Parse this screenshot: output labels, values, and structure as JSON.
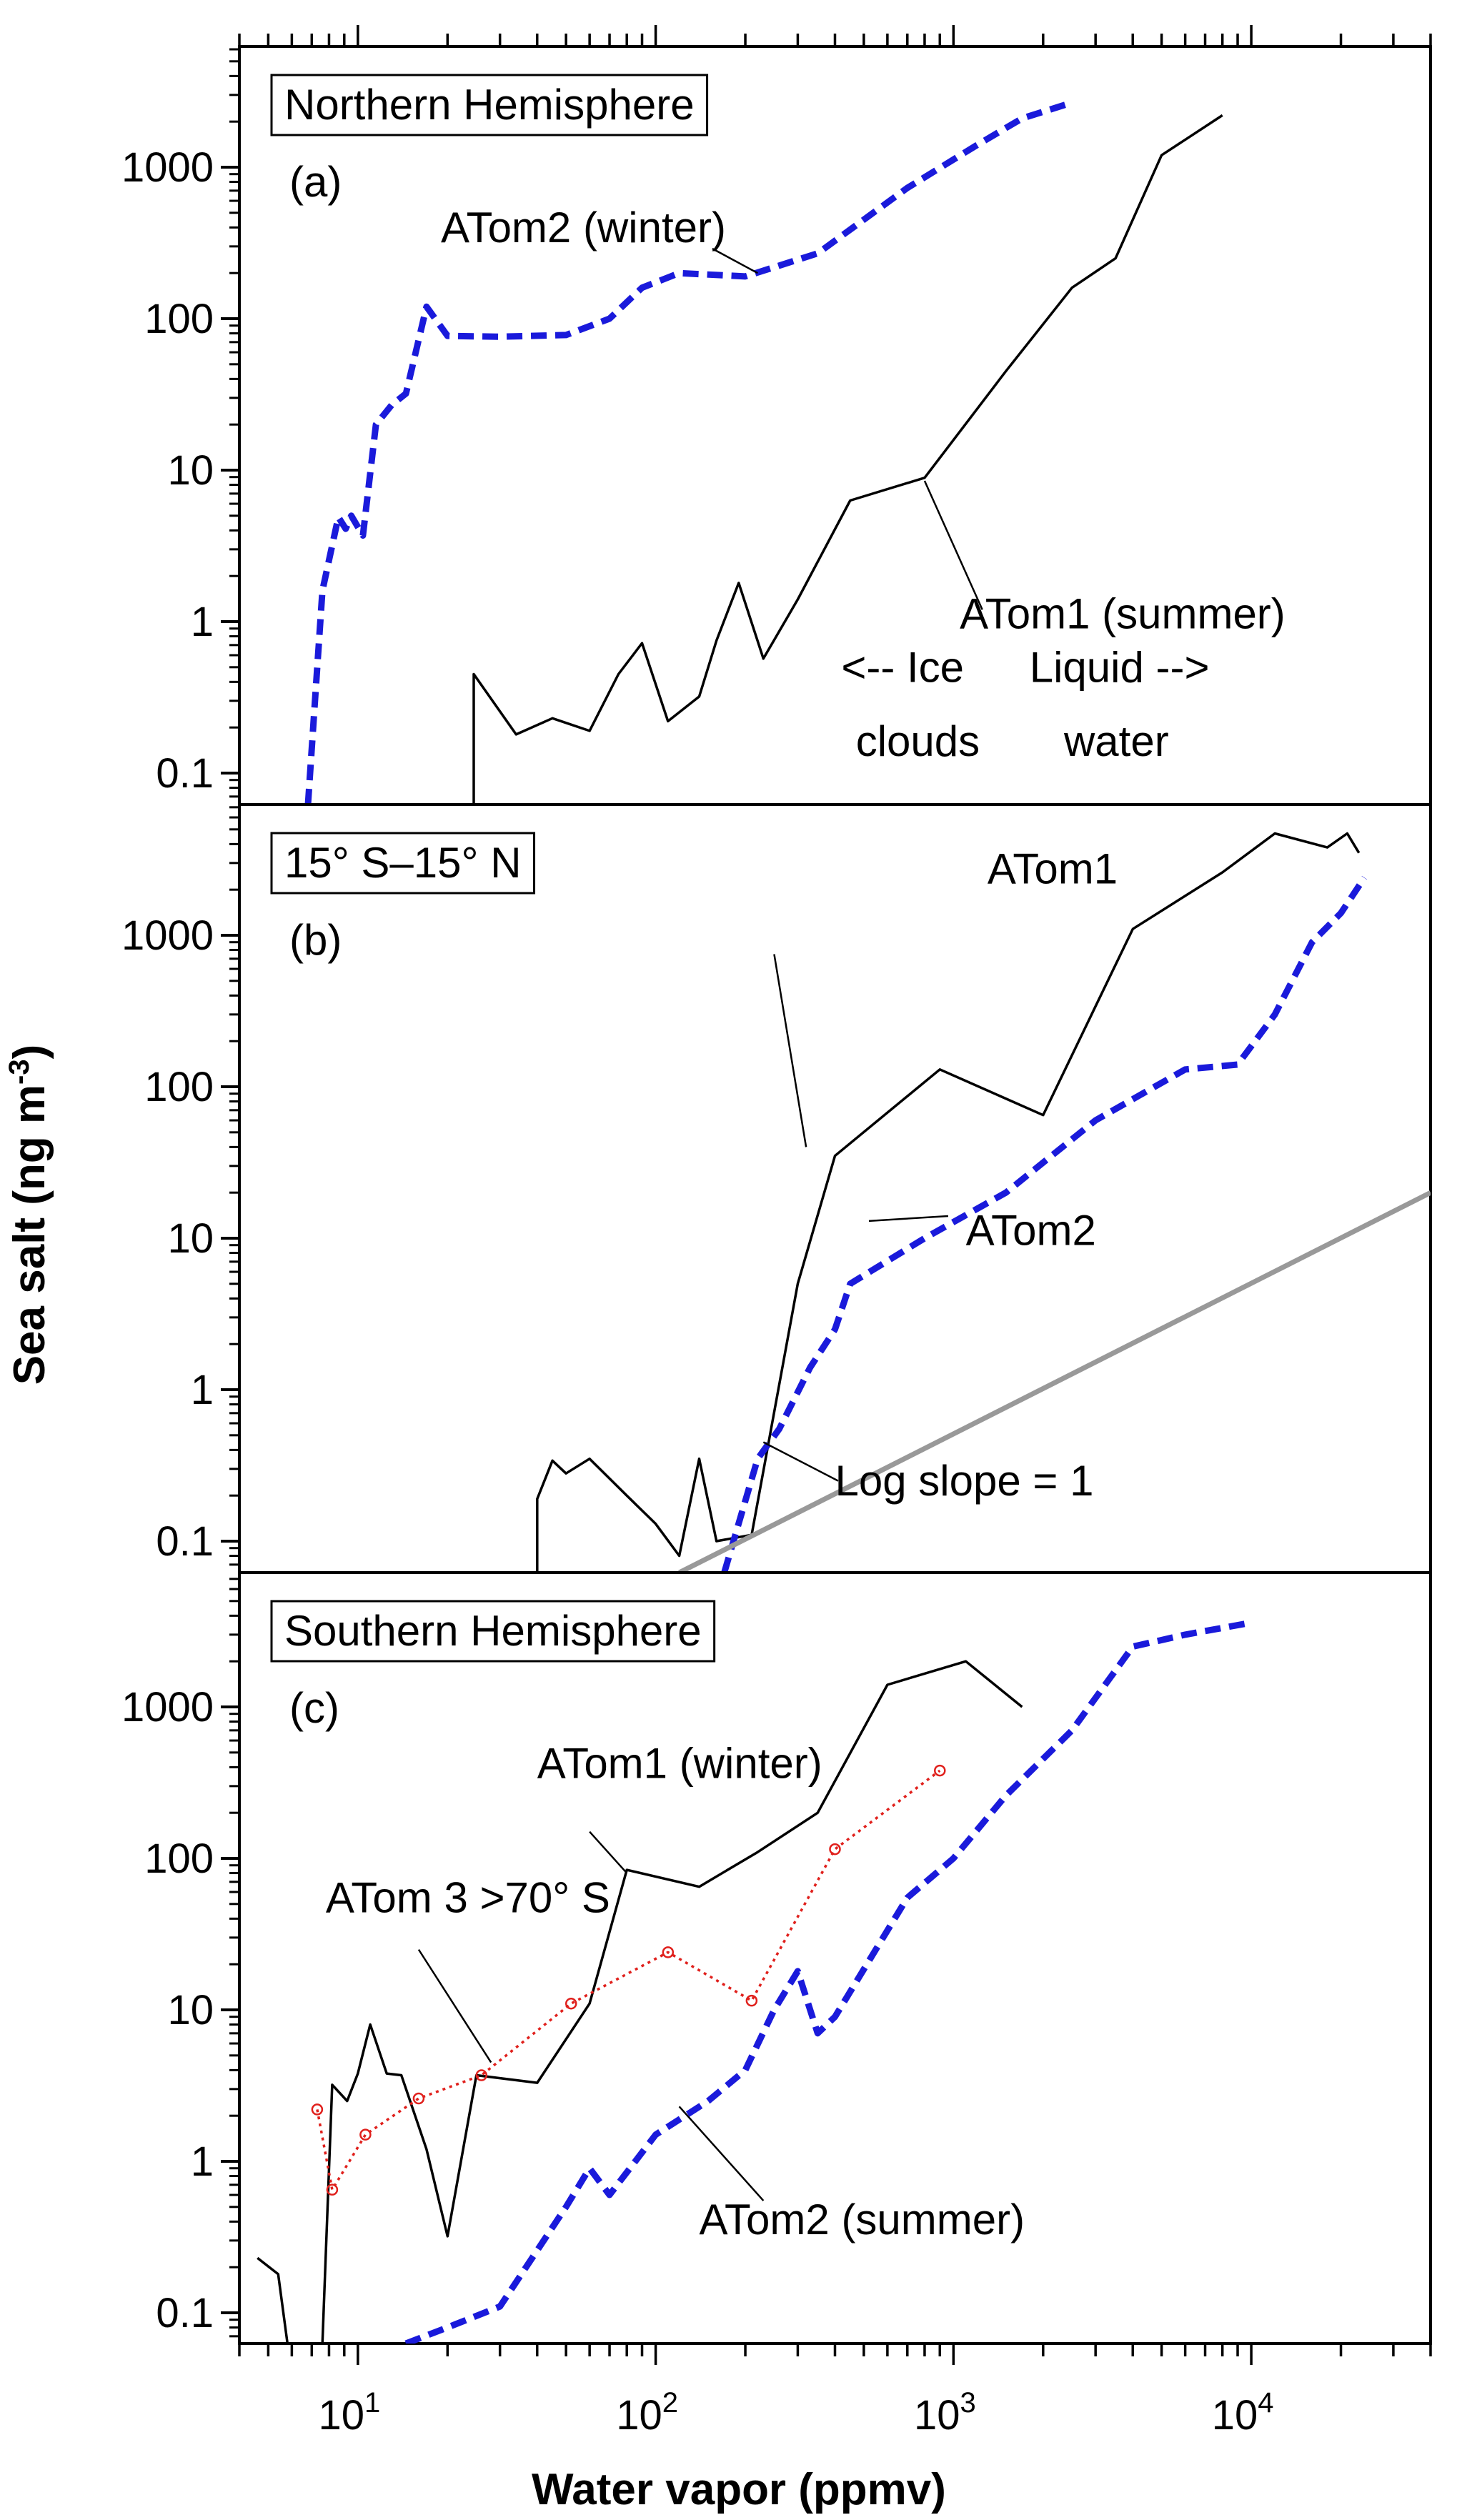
{
  "chart_data": {
    "type": "line",
    "title": "",
    "xlabel": "Water vapor (ppmv)",
    "ylabel": "Sea salt (ng m",
    "ylabel_superscript": "-3",
    "ylabel_suffix": ")",
    "xscale": "log",
    "yscale": "log",
    "xlim": [
      4,
      40000
    ],
    "x_ticks": [
      {
        "value": 10,
        "base": "10",
        "exp": "1"
      },
      {
        "value": 100,
        "base": "10",
        "exp": "2"
      },
      {
        "value": 1000,
        "base": "10",
        "exp": "3"
      },
      {
        "value": 10000,
        "base": "10",
        "exp": "4"
      }
    ],
    "y_ticks": [
      {
        "value": 0.1,
        "label": "0.1"
      },
      {
        "value": 1,
        "label": "1"
      },
      {
        "value": 10,
        "label": "10"
      },
      {
        "value": 100,
        "label": "100"
      },
      {
        "value": 1000,
        "label": "1000"
      }
    ],
    "ylim": [
      0.06,
      6000
    ],
    "grid": false,
    "panels": [
      {
        "id": "a",
        "box_label": "Northern Hemisphere",
        "panel_letter": "(a)",
        "series": [
          {
            "name": "ATom2 (winter)",
            "style": "dashed",
            "color": "#1a1adb",
            "points": [
              [
                6.8,
                0.06
              ],
              [
                7.6,
                1.6
              ],
              [
                8.6,
                4.9
              ],
              [
                9.1,
                4.1
              ],
              [
                9.5,
                5.0
              ],
              [
                10.4,
                3.7
              ],
              [
                11.5,
                20
              ],
              [
                13,
                27
              ],
              [
                14.5,
                32
              ],
              [
                17,
                120
              ],
              [
                20,
                77
              ],
              [
                30,
                76
              ],
              [
                50,
                78
              ],
              [
                70,
                100
              ],
              [
                90,
                160
              ],
              [
                120,
                200
              ],
              [
                200,
                190
              ],
              [
                350,
                270
              ],
              [
                700,
                730
              ],
              [
                1200,
                1400
              ],
              [
                1700,
                2100
              ],
              [
                2400,
                2600
              ]
            ]
          },
          {
            "name": "ATom1 (summer)",
            "style": "solid",
            "color": "#000000",
            "points": [
              [
                24.5,
                0.06
              ],
              [
                24.5,
                0.45
              ],
              [
                34,
                0.18
              ],
              [
                45,
                0.23
              ],
              [
                60,
                0.19
              ],
              [
                75,
                0.45
              ],
              [
                90,
                0.72
              ],
              [
                110,
                0.22
              ],
              [
                140,
                0.32
              ],
              [
                160,
                0.75
              ],
              [
                190,
                1.8
              ],
              [
                230,
                0.57
              ],
              [
                300,
                1.4
              ],
              [
                450,
                6.3
              ],
              [
                800,
                8.9
              ],
              [
                1500,
                45
              ],
              [
                2500,
                160
              ],
              [
                3500,
                250
              ],
              [
                5000,
                1200
              ],
              [
                8000,
                2200
              ]
            ]
          }
        ],
        "annotations": [
          {
            "text": "ATom2 (winter)",
            "x": 19,
            "y": 320,
            "anchor": "start"
          },
          {
            "text": "ATom1 (summer)",
            "x": 1050,
            "y": 0.9,
            "anchor": "start"
          },
          {
            "text": "<-- Ice",
            "x": 420,
            "y": 0.4,
            "anchor": "start"
          },
          {
            "text": "clouds",
            "x": 470,
            "y": 0.13,
            "anchor": "start"
          },
          {
            "text": "Liquid -->",
            "x": 1800,
            "y": 0.4,
            "anchor": "start"
          },
          {
            "text": "water",
            "x": 2350,
            "y": 0.13,
            "anchor": "start"
          }
        ],
        "leaders": [
          {
            "from": [
              220,
              200
            ],
            "to": [
              155,
              290
            ]
          },
          {
            "from": [
              800,
              8.5
            ],
            "to": [
              1250,
              1.2
            ]
          }
        ]
      },
      {
        "id": "b",
        "box_label": "15° S–15° N",
        "panel_letter": "(b)",
        "series": [
          {
            "name": "ATom1",
            "style": "solid",
            "color": "#000000",
            "points": [
              [
                40,
                0.06
              ],
              [
                40,
                0.19
              ],
              [
                45,
                0.34
              ],
              [
                50,
                0.28
              ],
              [
                60,
                0.35
              ],
              [
                80,
                0.2
              ],
              [
                100,
                0.13
              ],
              [
                120,
                0.08
              ],
              [
                140,
                0.35
              ],
              [
                160,
                0.1
              ],
              [
                210,
                0.11
              ],
              [
                300,
                5
              ],
              [
                400,
                35
              ],
              [
                900,
                130
              ],
              [
                2000,
                65
              ],
              [
                4000,
                1100
              ],
              [
                8000,
                2600
              ],
              [
                12000,
                4700
              ],
              [
                18000,
                3800
              ],
              [
                21000,
                4700
              ],
              [
                23000,
                3500
              ]
            ]
          },
          {
            "name": "ATom2",
            "style": "dashed",
            "color": "#1a1adb",
            "points": [
              [
                170,
                0.06
              ],
              [
                220,
                0.35
              ],
              [
                260,
                0.55
              ],
              [
                330,
                1.4
              ],
              [
                400,
                2.5
              ],
              [
                450,
                5
              ],
              [
                800,
                10
              ],
              [
                1500,
                20
              ],
              [
                3000,
                60
              ],
              [
                6000,
                130
              ],
              [
                9000,
                140
              ],
              [
                12000,
                300
              ],
              [
                16000,
                900
              ],
              [
                20000,
                1400
              ],
              [
                24000,
                2400
              ]
            ]
          },
          {
            "name": "Log slope = 1",
            "style": "solid",
            "color": "#999999",
            "points": [
              [
                120,
                0.06
              ],
              [
                40000,
                20
              ]
            ]
          }
        ],
        "annotations": [
          {
            "text": "ATom1",
            "x": 1300,
            "y": 2200,
            "anchor": "start"
          },
          {
            "text": "ATom2",
            "x": 1100,
            "y": 9,
            "anchor": "start"
          },
          {
            "text": "Log slope = 1",
            "x": 400,
            "y": 0.2,
            "anchor": "start"
          }
        ],
        "leaders": [
          {
            "from": [
              320,
              40
            ],
            "to": [
              250,
              750
            ]
          },
          {
            "from": [
              520,
              13
            ],
            "to": [
              960,
              14
            ]
          },
          {
            "from": [
              230,
              0.45
            ],
            "to": [
              410,
              0.25
            ]
          }
        ]
      },
      {
        "id": "c",
        "box_label": "Southern Hemisphere",
        "panel_letter": "(c)",
        "series": [
          {
            "name": "ATom1 (winter)",
            "style": "solid",
            "color": "#000000",
            "points": [
              [
                4.6,
                0.23
              ],
              [
                5.4,
                0.18
              ],
              [
                5.8,
                0.06
              ],
              [
                7.6,
                0.06
              ],
              [
                8.2,
                3.2
              ],
              [
                9.2,
                2.5
              ],
              [
                10,
                3.8
              ],
              [
                11,
                8
              ],
              [
                12.5,
                3.8
              ],
              [
                14,
                3.7
              ],
              [
                17,
                1.2
              ],
              [
                20,
                0.32
              ],
              [
                25,
                3.7
              ],
              [
                40,
                3.3
              ],
              [
                60,
                11
              ],
              [
                80,
                84
              ],
              [
                140,
                65
              ],
              [
                220,
                110
              ],
              [
                350,
                200
              ],
              [
                600,
                1400
              ],
              [
                1100,
                2000
              ],
              [
                1700,
                1000
              ]
            ]
          },
          {
            "name": "ATom2 (summer)",
            "style": "dashed",
            "color": "#1a1adb",
            "points": [
              [
                14.5,
                0.06
              ],
              [
                20,
                0.08
              ],
              [
                30,
                0.11
              ],
              [
                50,
                0.5
              ],
              [
                60,
                0.9
              ],
              [
                70,
                0.6
              ],
              [
                100,
                1.5
              ],
              [
                150,
                2.5
              ],
              [
                200,
                4
              ],
              [
                250,
                10
              ],
              [
                300,
                18
              ],
              [
                350,
                7
              ],
              [
                400,
                9
              ],
              [
                700,
                55
              ],
              [
                1000,
                100
              ],
              [
                1500,
                260
              ],
              [
                2500,
                700
              ],
              [
                4000,
                2500
              ],
              [
                6000,
                3000
              ],
              [
                10000,
                3600
              ]
            ]
          },
          {
            "name": "ATom 3 >70° S",
            "style": "dotted",
            "color": "#e0201c",
            "marker": "circle",
            "points": [
              [
                7.3,
                2.2
              ],
              [
                8.2,
                0.65
              ],
              [
                10.6,
                1.5
              ],
              [
                16,
                2.6
              ],
              [
                26,
                3.7
              ],
              [
                52,
                11
              ],
              [
                110,
                24
              ],
              [
                210,
                11.5
              ],
              [
                400,
                115
              ],
              [
                900,
                380
              ]
            ]
          }
        ],
        "annotations": [
          {
            "text": "ATom1 (winter)",
            "x": 40,
            "y": 340,
            "anchor": "start"
          },
          {
            "text": "ATom 3 >70° S",
            "x": 7.8,
            "y": 44,
            "anchor": "start"
          },
          {
            "text": "ATom2 (summer)",
            "x": 140,
            "y": 0.33,
            "anchor": "start"
          }
        ],
        "leaders": [
          {
            "from": [
              80,
              80
            ],
            "to": [
              60,
              150
            ]
          },
          {
            "from": [
              28,
              4.5
            ],
            "to": [
              16,
              25
            ]
          },
          {
            "from": [
              120,
              2.3
            ],
            "to": [
              230,
              0.55
            ]
          }
        ]
      }
    ]
  }
}
